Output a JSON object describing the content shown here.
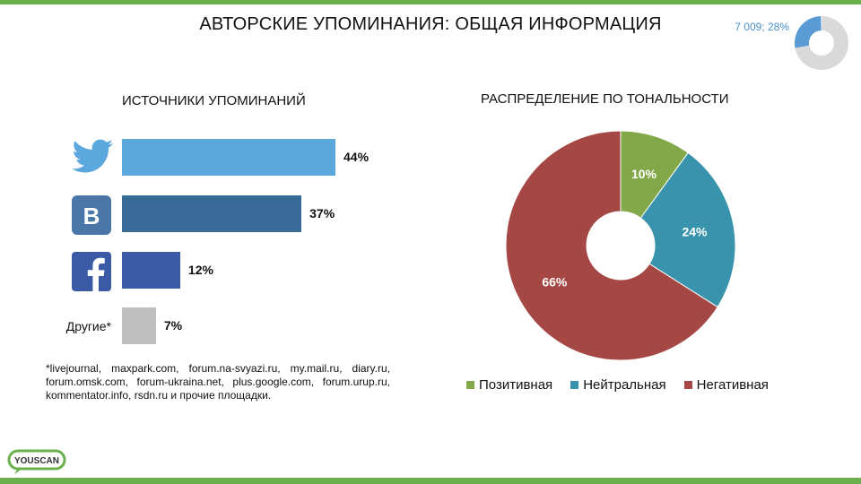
{
  "title": "АВТОРСКИЕ УПОМИНАНИЯ: ОБЩАЯ ИНФОРМАЦИЯ",
  "summary": {
    "label": "7 009; 28%",
    "share": 0.28,
    "colors": {
      "highlight": "#5b9bd5",
      "rest": "#d9d9d9"
    }
  },
  "sources_title": "ИСТОЧНИКИ УПОМИНАНИЙ",
  "tonality_title": "РАСПРЕДЕЛЕНИЕ ПО ТОНАЛЬНОСТИ",
  "other_label": "Другие*",
  "footnote": "*livejournal, maxpark.com, forum.na-svyazi.ru, my.mail.ru, diary.ru, forum.omsk.com, forum-ukraina.net, plus.google.com, forum.urup.ru, kommentator.info, rsdn.ru и прочие площадки.",
  "logo_text": "YOUSCAN",
  "icons": {
    "twitter": "twitter-bird-icon",
    "vk": "vk-logo-icon",
    "facebook": "facebook-logo-icon"
  },
  "chart_data": [
    {
      "type": "bar",
      "title": "ИСТОЧНИКИ УПОМИНАНИЙ",
      "orientation": "horizontal",
      "categories": [
        "Twitter",
        "ВКонтакте",
        "Facebook",
        "Другие*"
      ],
      "values": [
        44,
        37,
        12,
        7
      ],
      "value_labels": [
        "44%",
        "37%",
        "12%",
        "7%"
      ],
      "colors": [
        "#5ba8df",
        "#376a96",
        "#3b5aa5",
        "#bfbfbf"
      ],
      "xlim": [
        0,
        50
      ]
    },
    {
      "type": "pie",
      "title": "РАСПРЕДЕЛЕНИЕ ПО ТОНАЛЬНОСТИ",
      "donut": true,
      "categories": [
        "Позитивная",
        "Нейтральная",
        "Негативная"
      ],
      "values": [
        10,
        24,
        66
      ],
      "value_labels": [
        "10%",
        "24%",
        "66%"
      ],
      "colors": [
        "#83a84a",
        "#3a93ad",
        "#a54744"
      ],
      "legend": "bottom"
    }
  ]
}
